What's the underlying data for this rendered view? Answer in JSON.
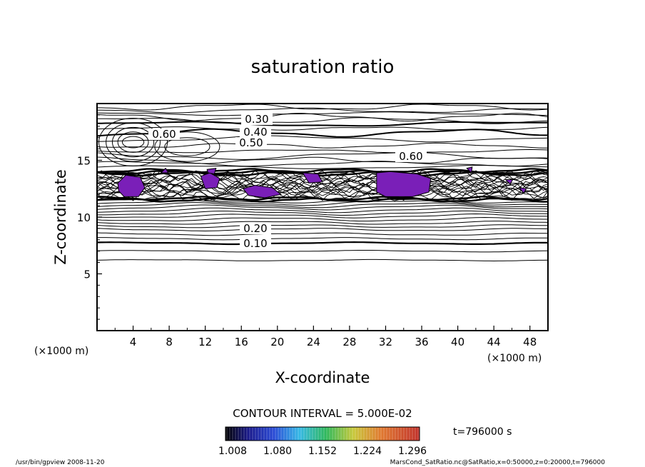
{
  "chart_data": {
    "type": "contour",
    "title": "saturation ratio",
    "xlabel": "X-coordinate",
    "ylabel": "Z-coordinate",
    "x_unit_left": "(×1000 m)",
    "x_unit_right": "(×1000 m)",
    "xlim": [
      0,
      50
    ],
    "ylim": [
      0,
      20
    ],
    "x_ticks": [
      "4",
      "8",
      "12",
      "16",
      "20",
      "24",
      "28",
      "32",
      "36",
      "40",
      "44",
      "48"
    ],
    "y_ticks": [
      "5",
      "10",
      "15"
    ],
    "contour_labels": [
      "0.30",
      "0.40",
      "0.50",
      "0.60",
      "0.60",
      "0.20",
      "0.10"
    ],
    "contour_interval_text": "CONTOUR INTERVAL = 5.000E-02",
    "time_text": "t=796000 s",
    "colorbar_labels": [
      "1.008",
      "1.080",
      "1.152",
      "1.224",
      "1.296"
    ],
    "colorbar_range": [
      1.008,
      1.296
    ],
    "shaded_color": "#7a1fb8",
    "footer_left": "/usr/bin/gpview   2008-11-20",
    "footer_right": "MarsCond_SatRatio.nc@SatRatio,x=0:50000,z=0:20000,t=796000",
    "grid": false,
    "legend_placement": "bottom"
  }
}
